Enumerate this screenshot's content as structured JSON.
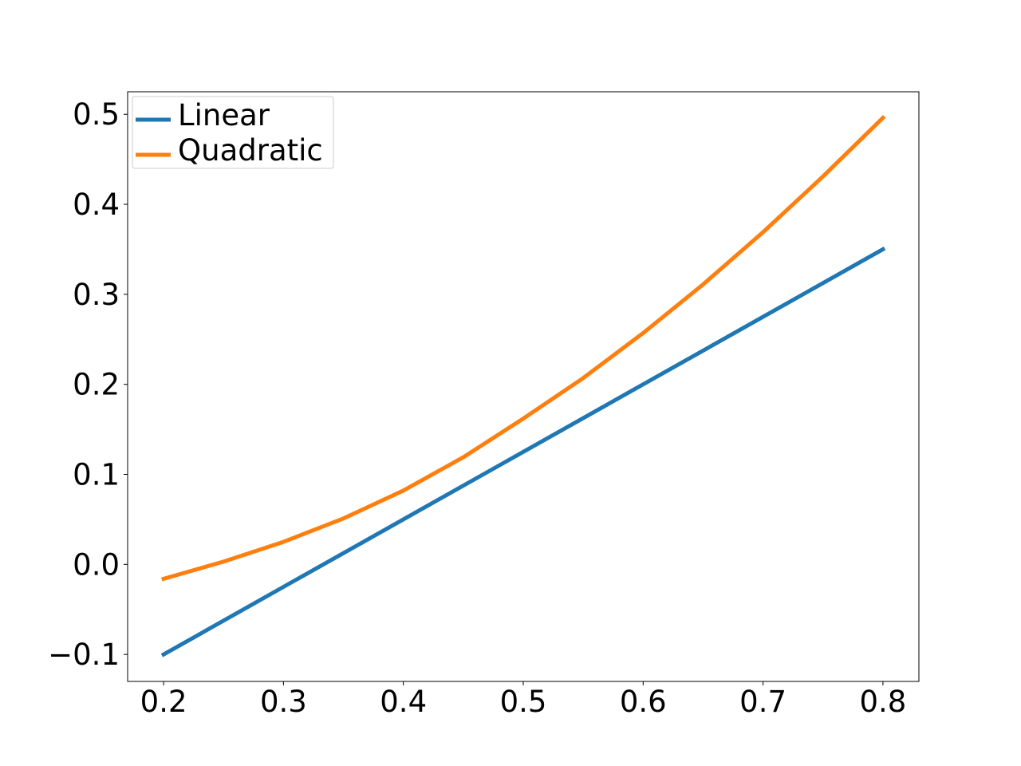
{
  "chart_data": {
    "type": "line",
    "title": "",
    "xlabel": "",
    "ylabel": "",
    "xlim": [
      0.17,
      0.83
    ],
    "ylim": [
      -0.13,
      0.525
    ],
    "xticks": [
      0.2,
      0.3,
      0.4,
      0.5,
      0.6,
      0.7,
      0.8
    ],
    "xtick_labels": [
      "0.2",
      "0.3",
      "0.4",
      "0.5",
      "0.6",
      "0.7",
      "0.8"
    ],
    "yticks": [
      -0.1,
      0.0,
      0.1,
      0.2,
      0.3,
      0.4,
      0.5
    ],
    "ytick_labels": [
      "−0.1",
      "0.0",
      "0.1",
      "0.2",
      "0.3",
      "0.4",
      "0.5"
    ],
    "grid": false,
    "legend_position": "top-left",
    "series": [
      {
        "name": "Linear",
        "color": "#1f77b4",
        "x": [
          0.2,
          0.3,
          0.4,
          0.5,
          0.6,
          0.7,
          0.8
        ],
        "y": [
          -0.1,
          -0.025,
          0.05,
          0.125,
          0.2,
          0.275,
          0.35
        ]
      },
      {
        "name": "Quadratic",
        "color": "#ff7f0e",
        "x": [
          0.2,
          0.25,
          0.3,
          0.35,
          0.4,
          0.45,
          0.5,
          0.55,
          0.6,
          0.65,
          0.7,
          0.75,
          0.8
        ],
        "y": [
          -0.016,
          0.003,
          0.025,
          0.051,
          0.082,
          0.119,
          0.162,
          0.207,
          0.257,
          0.311,
          0.369,
          0.431,
          0.496
        ]
      }
    ]
  }
}
